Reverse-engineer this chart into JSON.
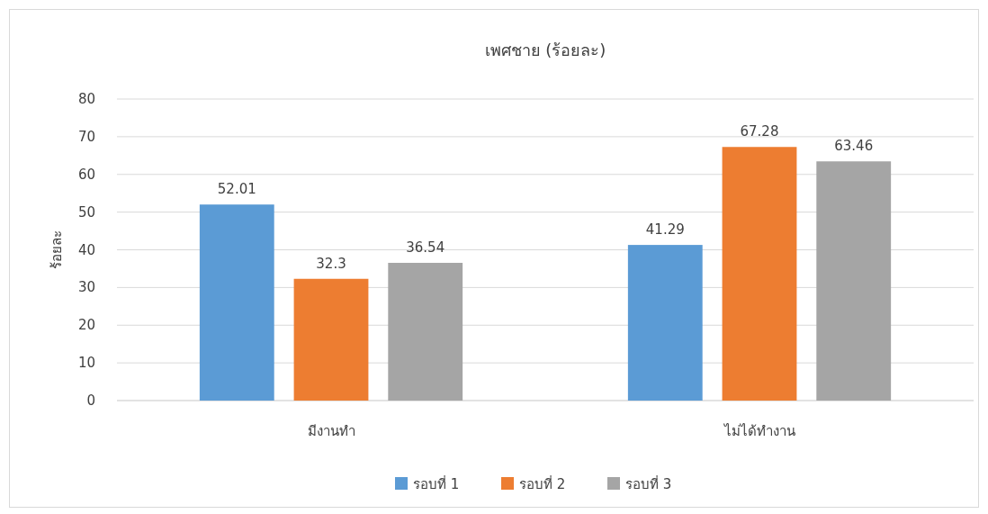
{
  "chart_data": {
    "type": "bar",
    "title": "เพศชาย (ร้อยละ)",
    "ylabel": "ร้อยละ",
    "categories": [
      "มีงานทำ",
      "ไม่ได้ทำงาน"
    ],
    "series": [
      {
        "name": "รอบที่ 1",
        "color": "#5b9bd5",
        "values": [
          52.01,
          41.29
        ]
      },
      {
        "name": "รอบที่ 2",
        "color": "#ed7d31",
        "values": [
          32.3,
          67.28
        ]
      },
      {
        "name": "รอบที่ 3",
        "color": "#a5a5a5",
        "values": [
          36.54,
          63.46
        ]
      }
    ],
    "ylim": [
      0,
      80
    ],
    "yticks": [
      0,
      10,
      20,
      30,
      40,
      50,
      60,
      70,
      80
    ],
    "grid": "y",
    "legend": "bottom",
    "data_labels": true
  }
}
